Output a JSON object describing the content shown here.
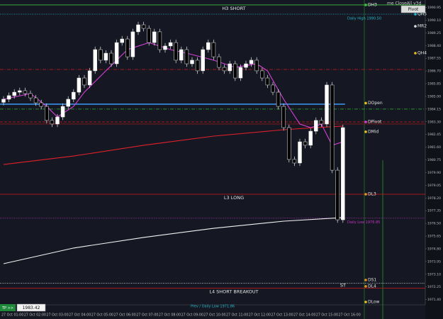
{
  "chart_data": {
    "type": "candlestick",
    "x_labels": [
      "27 Oct 01:00",
      "27 Oct 02:00",
      "27 Oct 03:00",
      "27 Oct 04:00",
      "27 Oct 05:00",
      "27 Oct 06:00",
      "27 Oct 07:00",
      "27 Oct 08:00",
      "27 Oct 09:00",
      "27 Oct 10:00",
      "27 Oct 11:00",
      "27 Oct 12:00",
      "27 Oct 13:00",
      "27 Oct 14:00",
      "27 Oct 15:00",
      "27 Oct 16:00"
    ],
    "open": [
      1984.6,
      1984.81,
      1985.05,
      1985.28,
      1985.38,
      1985.19,
      1984.9,
      1984.57,
      1984.33,
      1983.39,
      1983.15,
      1983.62,
      1984.33,
      1984.81,
      1985.28,
      1986.23,
      1985.76,
      1986.71,
      1988.13,
      1987.42,
      1987.89,
      1987.18,
      1988.6,
      1988.84,
      1987.65,
      1989.32,
      1989.79,
      1989.55,
      1988.6,
      1989.32,
      1988.13,
      1988.37,
      1988.6,
      1987.42,
      1988.13,
      1987.18,
      1987.42,
      1986.71,
      1988.13,
      1988.6,
      1987.65,
      1986.94,
      1986.71,
      1987.18,
      1986.23,
      1986.94,
      1987.18,
      1987.42,
      1986.71,
      1986.23,
      1985.76,
      1985.28,
      1984.33,
      1982.91,
      1980.78,
      1980.54,
      1981.96,
      1981.73,
      1982.67,
      1983.39,
      1983.15,
      1985.76,
      1980.06,
      1976.74
    ],
    "high": [
      1985.01,
      1985.25,
      1985.48,
      1985.58,
      1985.58,
      1985.39,
      1985.1,
      1984.77,
      1984.53,
      1983.59,
      1983.82,
      1984.53,
      1985.01,
      1985.48,
      1986.43,
      1986.43,
      1986.91,
      1988.33,
      1988.33,
      1988.09,
      1988.09,
      1988.8,
      1989.04,
      1989.04,
      1989.52,
      1989.99,
      1989.99,
      1989.75,
      1989.52,
      1989.52,
      1988.57,
      1988.8,
      1988.8,
      1988.33,
      1988.33,
      1987.62,
      1987.62,
      1988.33,
      1988.8,
      1988.8,
      1987.85,
      1987.14,
      1987.38,
      1987.38,
      1987.14,
      1987.38,
      1987.62,
      1987.62,
      1986.91,
      1986.43,
      1985.96,
      1985.48,
      1984.53,
      1983.11,
      1980.98,
      1982.16,
      1982.16,
      1982.87,
      1983.59,
      1983.59,
      1985.96,
      1985.96,
      1980.26,
      1983.11
    ],
    "low": [
      1984.4,
      1984.61,
      1984.85,
      1985.08,
      1984.99,
      1984.7,
      1984.37,
      1984.13,
      1983.19,
      1982.95,
      1982.95,
      1983.42,
      1984.13,
      1984.61,
      1985.08,
      1985.56,
      1985.56,
      1986.51,
      1987.22,
      1987.22,
      1986.98,
      1986.98,
      1988.4,
      1987.45,
      1987.45,
      1989.12,
      1989.35,
      1988.4,
      1988.4,
      1987.93,
      1987.93,
      1988.17,
      1987.22,
      1987.22,
      1986.98,
      1986.98,
      1986.51,
      1986.51,
      1987.93,
      1987.45,
      1986.74,
      1986.51,
      1986.51,
      1986.03,
      1986.03,
      1986.74,
      1986.98,
      1986.51,
      1986.03,
      1985.56,
      1985.08,
      1984.13,
      1982.71,
      1980.58,
      1980.34,
      1980.34,
      1981.53,
      1981.53,
      1982.47,
      1982.95,
      1982.95,
      1979.86,
      1976.54,
      1976.54
    ],
    "close": [
      1984.81,
      1985.05,
      1985.28,
      1985.38,
      1985.19,
      1984.9,
      1984.57,
      1984.33,
      1983.39,
      1983.15,
      1983.62,
      1984.33,
      1984.81,
      1985.28,
      1986.23,
      1985.76,
      1986.71,
      1988.13,
      1987.42,
      1987.89,
      1987.18,
      1988.6,
      1988.84,
      1987.65,
      1989.32,
      1989.79,
      1989.55,
      1988.6,
      1989.32,
      1988.13,
      1988.37,
      1988.6,
      1987.42,
      1988.13,
      1987.18,
      1987.42,
      1986.71,
      1988.13,
      1988.6,
      1987.65,
      1986.94,
      1986.71,
      1987.18,
      1986.23,
      1986.94,
      1987.18,
      1987.42,
      1986.71,
      1986.23,
      1985.76,
      1985.28,
      1984.33,
      1982.91,
      1980.78,
      1980.54,
      1981.96,
      1981.73,
      1982.67,
      1983.39,
      1983.15,
      1985.76,
      1980.06,
      1976.74,
      1982.91
    ],
    "up_color": "#ffffff",
    "down_color": "#000000",
    "lines": [
      {
        "color": "#d63fd6",
        "x": [
          0,
          5,
          8,
          10,
          13,
          15,
          19,
          23,
          27,
          31,
          34,
          39,
          43,
          47,
          49,
          52,
          55,
          57,
          59,
          61,
          63
        ],
        "values": [
          1984.81,
          1985.19,
          1984.33,
          1983.62,
          1984.33,
          1985.28,
          1986.71,
          1988.13,
          1988.6,
          1988.13,
          1987.89,
          1987.42,
          1986.94,
          1987.18,
          1986.71,
          1984.81,
          1983.15,
          1982.91,
          1983.15,
          1981.73,
          1981.96
        ]
      },
      {
        "color": "#e0202a",
        "x": [
          0,
          13,
          26,
          39,
          52,
          58,
          63
        ],
        "values": [
          1980.44,
          1981.01,
          1981.73,
          1982.34,
          1982.77,
          1982.91,
          1983.01
        ]
      },
      {
        "color": "#f2f2f2",
        "x": [
          0,
          13,
          26,
          39,
          52,
          63
        ],
        "values": [
          1973.8,
          1974.85,
          1975.56,
          1976.17,
          1976.65,
          1976.89
        ]
      }
    ],
    "levels": [
      {
        "value": 1991.12,
        "color": "#3fbf3f",
        "style": "solid",
        "label": "H3 SHORT",
        "label_align": "center"
      },
      {
        "value": 1990.5,
        "color": "#27b5c8",
        "style": "dotted",
        "label": "Daily High 1990.50",
        "label_align": "right"
      },
      {
        "value": 1986.8,
        "color": "#d01818",
        "style": "dashdot"
      },
      {
        "value": 1984.48,
        "color": "#3a8fe8",
        "style": "thick"
      },
      {
        "value": 1984.15,
        "color": "#2fae2f",
        "style": "dashdot"
      },
      {
        "value": 1983.29,
        "color": "#d01818",
        "style": "dashed"
      },
      {
        "value": 1983.15,
        "color": "#8a1a1a",
        "style": "solid"
      },
      {
        "value": 1978.45,
        "color": "#d01818",
        "style": "solid",
        "label": "L3 LONG",
        "label_align": "center"
      },
      {
        "value": 1976.85,
        "color": "#c035c0",
        "style": "dotted",
        "label": "Daily Low 1976.85",
        "label_align": "right"
      },
      {
        "value": 1972.5,
        "color": "#d8d8d8",
        "style": "dotted",
        "label": "ST",
        "label_align": "end"
      },
      {
        "value": 1972.17,
        "color": "#d01818",
        "style": "solid",
        "label": "L4 SHORT BREAKOUT",
        "label_align": "center"
      }
    ],
    "day_markers": [
      {
        "label": "DH3",
        "value": 1991.12,
        "color": "#3fbf3f"
      },
      {
        "label": "DOpen",
        "value": 1984.55,
        "color": "#e8c020"
      },
      {
        "label": "DPivot",
        "value": 1983.29,
        "color": "#d63fd6"
      },
      {
        "label": "DMid",
        "value": 1982.63,
        "color": "#e8c020"
      },
      {
        "label": "DL3",
        "value": 1978.45,
        "color": "#e8902a"
      },
      {
        "label": "DS1",
        "value": 1972.71,
        "color": "#e8902a"
      },
      {
        "label": "DL4",
        "value": 1972.29,
        "color": "#e8902a"
      },
      {
        "label": "DLow",
        "value": 1971.24,
        "color": "#e8c020"
      }
    ],
    "week_markers": [
      {
        "label": "QH5",
        "value": 1990.5,
        "color": "#27b5c8"
      },
      {
        "label": "MR2",
        "value": 1989.69,
        "color": "#e0e0e0"
      },
      {
        "label": "QH4",
        "value": 1987.89,
        "color": "#e8c020"
      }
    ],
    "note": "Prev / Daily Low 1971.86",
    "ylim": [
      1971.05,
      1991.45
    ],
    "yticks": [
      1990.95,
      {
        "value": 1990.1,
        "label": "1990.10"
      },
      1989.25,
      {
        "value": 1988.4,
        "label": "1988.40"
      },
      1987.55,
      {
        "value": 1986.7,
        "label": "1986.70"
      },
      1985.85,
      {
        "value": 1985,
        "label": "1985.00"
      },
      1984.15,
      {
        "value": 1983.3,
        "label": "1983.30"
      },
      1982.45,
      {
        "value": 1981.6,
        "label": "1981.60"
      },
      1980.75,
      {
        "value": 1979.9,
        "label": "1979.90"
      },
      1979.05,
      {
        "value": 1978.2,
        "label": "1978.20"
      },
      1977.35,
      {
        "value": 1976.5,
        "label": "1976.50"
      },
      1975.65,
      {
        "value": 1974.8,
        "label": "1974.80"
      },
      1973.95,
      {
        "value": 1973.1,
        "label": "1973.10"
      },
      1972.25,
      {
        "value": 1971.4,
        "label": "1971.40"
      }
    ]
  },
  "ui": {
    "header_text": "me CloseAll v3d",
    "button": "Pivot",
    "tp_button": "TP >>",
    "price_box": "1983.42"
  }
}
